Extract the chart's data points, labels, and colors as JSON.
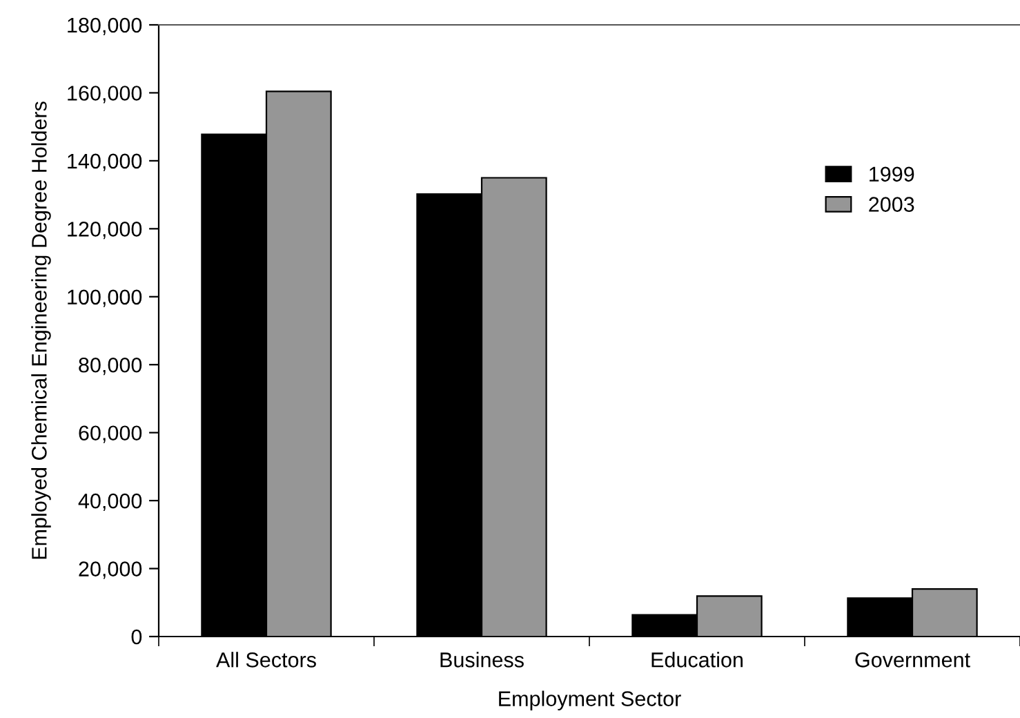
{
  "chart_data": {
    "type": "bar",
    "xlabel": "Employment Sector",
    "ylabel": "Employed Chemical Engineering Degree Holders",
    "categories": [
      "All Sectors",
      "Business",
      "Education",
      "Government"
    ],
    "series": [
      {
        "name": "1999",
        "color": "#000000",
        "values": [
          147800,
          130200,
          6400,
          11300
        ]
      },
      {
        "name": "2003",
        "color": "#969696",
        "values": [
          160400,
          135000,
          11900,
          14000
        ]
      }
    ],
    "ylim": [
      0,
      180000
    ],
    "yticks": [
      {
        "value": 0,
        "label": "0"
      },
      {
        "value": 20000,
        "label": "20,000"
      },
      {
        "value": 40000,
        "label": "40,000"
      },
      {
        "value": 60000,
        "label": "60,000"
      },
      {
        "value": 80000,
        "label": "80,000"
      },
      {
        "value": 100000,
        "label": "100,000"
      },
      {
        "value": 120000,
        "label": "120,000"
      },
      {
        "value": 140000,
        "label": "140,000"
      },
      {
        "value": 160000,
        "label": "160,000"
      },
      {
        "value": 180000,
        "label": "180,000"
      }
    ],
    "grid": false,
    "legend": "top right"
  }
}
